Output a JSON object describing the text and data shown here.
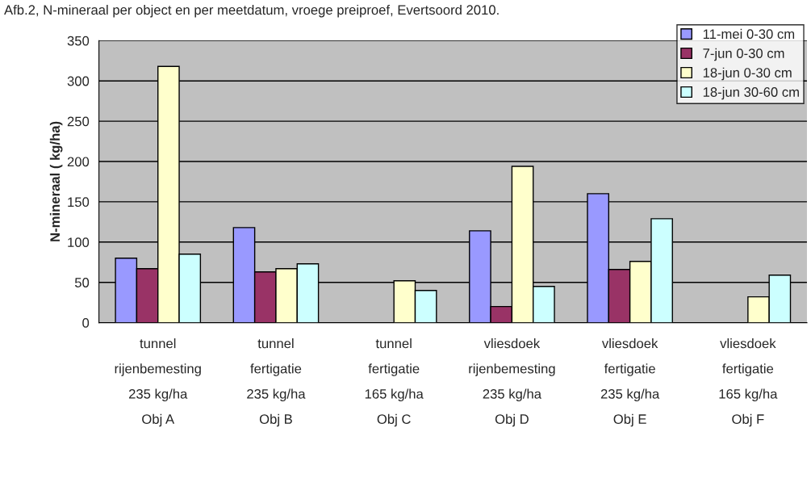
{
  "chart_data": {
    "type": "bar",
    "title": "Afb.2, N-mineraal per object en per meetdatum, vroege preiproef, Evertsoord 2010.",
    "ylabel": "N-mineraal ( kg/ha)",
    "categories": [
      "tunnel\nrijenbemesting\n235 kg/ha\nObj A",
      "tunnel\nfertigatie\n235 kg/ha\nObj B",
      "tunnel\nfertigatie\n165 kg/ha\nObj C",
      "vliesdoek\nrijenbemesting\n235 kg/ha\nObj D",
      "vliesdoek\nfertigatie\n235 kg/ha\nObj E",
      "vliesdoek\nfertigatie\n165 kg/ha\nObj F"
    ],
    "series": [
      {
        "name": "11-mei 0-30 cm",
        "color": "#9999ff",
        "values": [
          80,
          118,
          null,
          114,
          160,
          null
        ]
      },
      {
        "name": "7-jun 0-30 cm",
        "color": "#993366",
        "values": [
          67,
          63,
          null,
          20,
          66,
          null
        ]
      },
      {
        "name": "18-jun 0-30 cm",
        "color": "#ffffcc",
        "values": [
          318,
          67,
          52,
          194,
          76,
          32
        ]
      },
      {
        "name": "18-jun 30-60 cm",
        "color": "#ccffff",
        "values": [
          85,
          73,
          40,
          45,
          129,
          59
        ]
      }
    ],
    "ylim": [
      0,
      350
    ],
    "yticks": [
      0,
      50,
      100,
      150,
      200,
      250,
      300,
      350
    ],
    "grid": "y",
    "legend": "top right"
  }
}
